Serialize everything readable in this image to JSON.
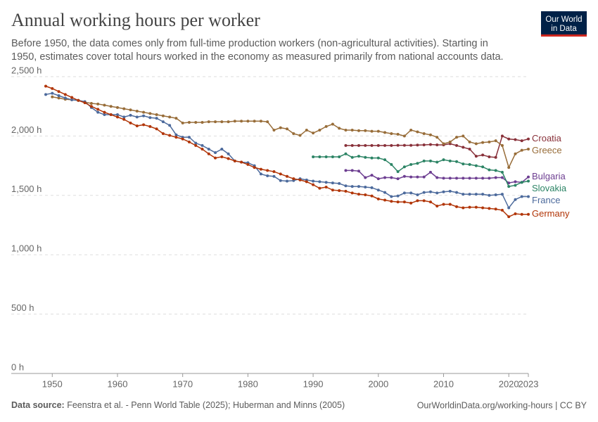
{
  "chart_data": {
    "type": "line",
    "title": "Annual working hours per worker",
    "subtitle": [
      "Before 1950, the data comes only from full-time production workers (non-agricultural activities). Starting in",
      "1950, estimates cover total hours worked in the economy as measured primarily from national accounts data."
    ],
    "logo": [
      "Our World",
      "in Data"
    ],
    "source_label": "Data source:",
    "source": "Feenstra et al. - Penn World Table (2025); Huberman and Minns (2005)",
    "footer_right": "OurWorldinData.org/working-hours | CC BY",
    "xlim": [
      1949,
      2023
    ],
    "xticks": [
      1950,
      1960,
      1970,
      1980,
      1990,
      2000,
      2010,
      2020,
      2023
    ],
    "ylim": [
      0,
      2500
    ],
    "yticks": [
      {
        "value": 0,
        "label": "0 h"
      },
      {
        "value": 500,
        "label": "500 h"
      },
      {
        "value": 1000,
        "label": "1,000 h"
      },
      {
        "value": 1500,
        "label": "1,500 h"
      },
      {
        "value": 2000,
        "label": "2,000 h"
      },
      {
        "value": 2500,
        "label": "2,500 h"
      }
    ],
    "grid": true,
    "x": [
      1949,
      1950,
      1951,
      1952,
      1953,
      1954,
      1955,
      1956,
      1957,
      1958,
      1959,
      1960,
      1961,
      1962,
      1963,
      1964,
      1965,
      1966,
      1967,
      1968,
      1969,
      1970,
      1971,
      1972,
      1973,
      1974,
      1975,
      1976,
      1977,
      1978,
      1979,
      1980,
      1981,
      1982,
      1983,
      1984,
      1985,
      1986,
      1987,
      1988,
      1989,
      1990,
      1991,
      1992,
      1993,
      1994,
      1995,
      1996,
      1997,
      1998,
      1999,
      2000,
      2001,
      2002,
      2003,
      2004,
      2005,
      2006,
      2007,
      2008,
      2009,
      2010,
      2011,
      2012,
      2013,
      2014,
      2015,
      2016,
      2017,
      2018,
      2019,
      2020,
      2021,
      2022,
      2023
    ],
    "series": [
      {
        "name": "Croatia",
        "color": "#883039",
        "values": [
          null,
          null,
          null,
          null,
          null,
          null,
          null,
          null,
          null,
          null,
          null,
          null,
          null,
          null,
          null,
          null,
          null,
          null,
          null,
          null,
          null,
          null,
          null,
          null,
          null,
          null,
          null,
          null,
          null,
          null,
          null,
          null,
          null,
          null,
          null,
          null,
          null,
          null,
          null,
          null,
          null,
          null,
          null,
          null,
          null,
          null,
          1920,
          1920,
          1920,
          1920,
          1920,
          1920,
          1920,
          1920,
          1922,
          1922,
          1922,
          1924,
          1925,
          1928,
          1925,
          1925,
          1935,
          1920,
          1905,
          1890,
          1830,
          1840,
          1825,
          1820,
          2000,
          1975,
          1970,
          1960,
          1975
        ]
      },
      {
        "name": "Greece",
        "color": "#986d39",
        "values": [
          null,
          2330,
          2320,
          2310,
          2305,
          2300,
          2285,
          2275,
          2270,
          2260,
          2250,
          2240,
          2230,
          2220,
          2210,
          2200,
          2190,
          2180,
          2170,
          2160,
          2150,
          2110,
          2115,
          2115,
          2115,
          2120,
          2120,
          2120,
          2120,
          2125,
          2125,
          2125,
          2125,
          2125,
          2120,
          2050,
          2070,
          2060,
          2020,
          2005,
          2050,
          2025,
          2050,
          2080,
          2100,
          2065,
          2050,
          2050,
          2045,
          2045,
          2040,
          2040,
          2030,
          2020,
          2015,
          2000,
          2050,
          2035,
          2020,
          2010,
          1990,
          1935,
          1950,
          1990,
          2000,
          1950,
          1935,
          1945,
          1950,
          1960,
          1920,
          1735,
          1850,
          1880,
          1890
        ]
      },
      {
        "name": "Bulgaria",
        "color": "#6d3e91",
        "values": [
          null,
          null,
          null,
          null,
          null,
          null,
          null,
          null,
          null,
          null,
          null,
          null,
          null,
          null,
          null,
          null,
          null,
          null,
          null,
          null,
          null,
          null,
          null,
          null,
          null,
          null,
          null,
          null,
          null,
          null,
          null,
          null,
          null,
          null,
          null,
          null,
          null,
          null,
          null,
          null,
          null,
          null,
          null,
          null,
          null,
          null,
          1710,
          1710,
          1705,
          1650,
          1670,
          1640,
          1650,
          1650,
          1640,
          1660,
          1655,
          1655,
          1655,
          1695,
          1650,
          1645,
          1645,
          1645,
          1645,
          1645,
          1645,
          1645,
          1645,
          1650,
          1650,
          1605,
          1615,
          1610,
          1655
        ]
      },
      {
        "name": "Slovakia",
        "color": "#2c8465",
        "values": [
          null,
          null,
          null,
          null,
          null,
          null,
          null,
          null,
          null,
          null,
          null,
          null,
          null,
          null,
          null,
          null,
          null,
          null,
          null,
          null,
          null,
          null,
          null,
          null,
          null,
          null,
          null,
          null,
          null,
          null,
          null,
          null,
          null,
          null,
          null,
          null,
          null,
          null,
          null,
          null,
          null,
          1825,
          1825,
          1825,
          1825,
          1825,
          1850,
          1820,
          1830,
          1820,
          1815,
          1815,
          1800,
          1760,
          1700,
          1740,
          1760,
          1770,
          1790,
          1790,
          1780,
          1800,
          1790,
          1785,
          1765,
          1760,
          1750,
          1740,
          1715,
          1710,
          1695,
          1575,
          1585,
          1610,
          1620
        ]
      },
      {
        "name": "France",
        "color": "#4c6a9c",
        "values": [
          2350,
          2360,
          2340,
          2320,
          2305,
          2300,
          2290,
          2240,
          2200,
          2180,
          2180,
          2180,
          2160,
          2175,
          2160,
          2170,
          2155,
          2150,
          2120,
          2090,
          2010,
          1990,
          1990,
          1940,
          1920,
          1890,
          1860,
          1890,
          1850,
          1790,
          1780,
          1775,
          1750,
          1680,
          1665,
          1660,
          1625,
          1620,
          1625,
          1640,
          1630,
          1620,
          1615,
          1610,
          1605,
          1600,
          1580,
          1575,
          1575,
          1570,
          1565,
          1545,
          1525,
          1490,
          1495,
          1520,
          1520,
          1505,
          1525,
          1530,
          1520,
          1530,
          1535,
          1525,
          1510,
          1510,
          1510,
          1510,
          1500,
          1505,
          1510,
          1395,
          1465,
          1490,
          1490
        ]
      },
      {
        "name": "Germany",
        "color": "#b13507",
        "values": [
          2420,
          2400,
          2375,
          2350,
          2325,
          2300,
          2280,
          2250,
          2225,
          2200,
          2180,
          2160,
          2140,
          2110,
          2085,
          2095,
          2080,
          2060,
          2020,
          2005,
          1990,
          1975,
          1950,
          1920,
          1890,
          1850,
          1815,
          1825,
          1810,
          1790,
          1780,
          1760,
          1735,
          1720,
          1710,
          1700,
          1680,
          1660,
          1640,
          1630,
          1615,
          1590,
          1560,
          1570,
          1545,
          1540,
          1535,
          1520,
          1510,
          1505,
          1495,
          1470,
          1460,
          1450,
          1445,
          1445,
          1435,
          1455,
          1455,
          1445,
          1410,
          1425,
          1425,
          1405,
          1395,
          1400,
          1400,
          1395,
          1390,
          1385,
          1375,
          1320,
          1345,
          1340,
          1340
        ]
      }
    ]
  }
}
